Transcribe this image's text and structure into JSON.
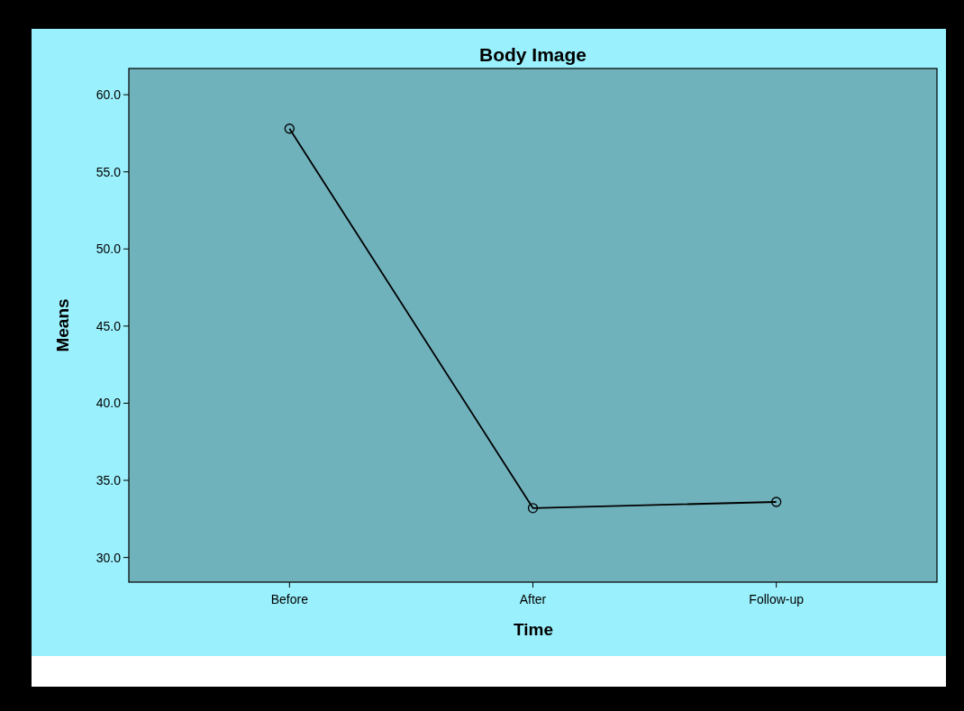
{
  "chart_data": {
    "type": "line",
    "title": "Body Image",
    "xlabel": "Time",
    "ylabel": "Means",
    "categories": [
      "Before",
      "After",
      "Follow-up"
    ],
    "series": [
      {
        "color": "#000000",
        "values": [
          57.8,
          33.2,
          33.6
        ]
      }
    ],
    "ylim": [
      28.4,
      61.7
    ],
    "yticks": [
      {
        "value": 30,
        "label": "30.0"
      },
      {
        "value": 35,
        "label": "35.0"
      },
      {
        "value": 40,
        "label": "40.0"
      },
      {
        "value": 45,
        "label": "45.0"
      },
      {
        "value": 50,
        "label": "50.0"
      },
      {
        "value": 55,
        "label": "55.0"
      },
      {
        "value": 60,
        "label": "60.0"
      }
    ],
    "marker": "circle",
    "line_style": "solid",
    "grid": false
  }
}
